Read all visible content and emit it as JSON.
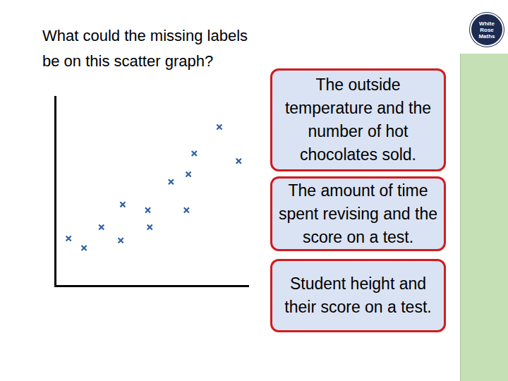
{
  "question": [
    "What could the missing labels",
    "be on this scatter graph?"
  ],
  "options": [
    "The outside temperature and the number of hot chocolates sold.",
    "The amount of time spent revising and the score on a test.",
    "Student height and their score on a test."
  ],
  "logo": [
    "White",
    "Rose",
    "Maths"
  ],
  "chart_data": {
    "type": "scatter",
    "x": [
      0.7,
      1.5,
      2.4,
      3.4,
      3.5,
      4.8,
      4.9,
      6.0,
      6.9,
      6.8,
      7.2,
      8.5,
      9.5
    ],
    "values": [
      2.5,
      2.0,
      3.1,
      2.4,
      4.3,
      4.0,
      3.1,
      5.5,
      5.9,
      4.0,
      7.0,
      8.4,
      6.6
    ],
    "color": "#2e5fa3",
    "marker": "x",
    "xlim": [
      0,
      10
    ],
    "ylim": [
      0,
      10
    ],
    "grid": false,
    "tick_labels": false
  }
}
